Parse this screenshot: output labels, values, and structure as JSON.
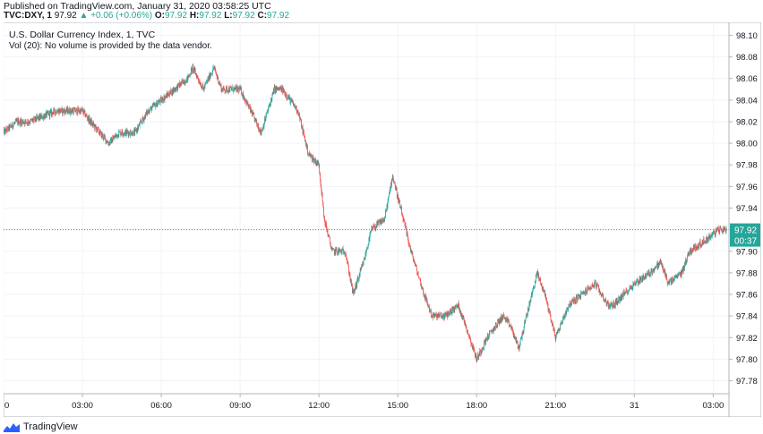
{
  "header": {
    "published": "Published on TradingView.com, January 31, 2020 03:58:25 UTC"
  },
  "ohlc": {
    "symbol": "TVC:DXY, 1",
    "last": "97.92",
    "change": "+0.06 (+0.06%)",
    "o_label": "O:",
    "o_value": "97.92",
    "h_label": "H:",
    "h_value": "97.92",
    "l_label": "L:",
    "l_value": "97.92",
    "c_label": "C:",
    "c_value": "97.92",
    "change_color": "#26a69a"
  },
  "legend": {
    "title": "U.S. Dollar Currency Index, 1, TVC",
    "volume_note": "Vol (20): No volume is provided by the data vendor."
  },
  "price_badge": {
    "price": "97.92",
    "countdown": "00:37",
    "color": "#26a69a"
  },
  "footer": {
    "brand": "TradingView"
  },
  "colors": {
    "up": "#26a69a",
    "down": "#ef5350",
    "grid": "#f0f3fa",
    "axis": "#b2b5be",
    "text": "#131722"
  },
  "chart_data": {
    "type": "candlestick",
    "title": "U.S. Dollar Currency Index, 1, TVC",
    "x_ticks": [
      "0",
      "03:00",
      "06:00",
      "09:00",
      "12:00",
      "15:00",
      "18:00",
      "21:00",
      "31",
      "03:00"
    ],
    "y_ticks": [
      "98.10",
      "98.08",
      "98.06",
      "98.04",
      "98.02",
      "98.00",
      "97.98",
      "97.96",
      "97.94",
      "97.92",
      "97.90",
      "97.88",
      "97.86",
      "97.84",
      "97.82",
      "97.80",
      "97.78"
    ],
    "ylim": [
      97.768,
      98.112
    ],
    "last_price": 97.92,
    "grid": true,
    "close_path_hours": [
      0,
      0.5,
      1,
      2,
      2.5,
      3,
      3.3,
      4,
      4.4,
      5,
      5.5,
      6,
      6.5,
      7,
      7.2,
      7.6,
      8,
      8.3,
      9,
      9.4,
      9.8,
      10.3,
      10.6,
      11.2,
      11.6,
      12,
      12.2,
      12.5,
      13,
      13.3,
      13.7,
      14,
      14.5,
      14.8,
      15,
      15.5,
      16,
      16.3,
      16.8,
      17.3,
      17.6,
      18,
      18.4,
      19,
      19.3,
      19.6,
      19.9,
      20.3,
      20.6,
      21,
      21.5,
      22,
      22.5,
      23,
      23.2,
      23.6,
      24,
      24.6,
      25,
      25.3,
      25.8,
      26.1,
      26.7,
      27.2,
      27.5
    ],
    "close_path_values": [
      98.01,
      98.02,
      98.02,
      98.03,
      98.03,
      98.03,
      98.02,
      98.0,
      98.01,
      98.01,
      98.03,
      98.04,
      98.05,
      98.06,
      98.07,
      98.05,
      98.07,
      98.05,
      98.05,
      98.03,
      98.01,
      98.05,
      98.05,
      98.03,
      97.99,
      97.98,
      97.93,
      97.9,
      97.9,
      97.86,
      97.89,
      97.92,
      97.93,
      97.97,
      97.95,
      97.9,
      97.86,
      97.84,
      97.84,
      97.85,
      97.83,
      97.8,
      97.82,
      97.84,
      97.83,
      97.81,
      97.84,
      97.88,
      97.86,
      97.82,
      97.85,
      97.86,
      97.87,
      97.85,
      97.85,
      97.86,
      97.87,
      97.88,
      97.89,
      97.87,
      97.88,
      97.9,
      97.91,
      97.92,
      97.92
    ]
  }
}
